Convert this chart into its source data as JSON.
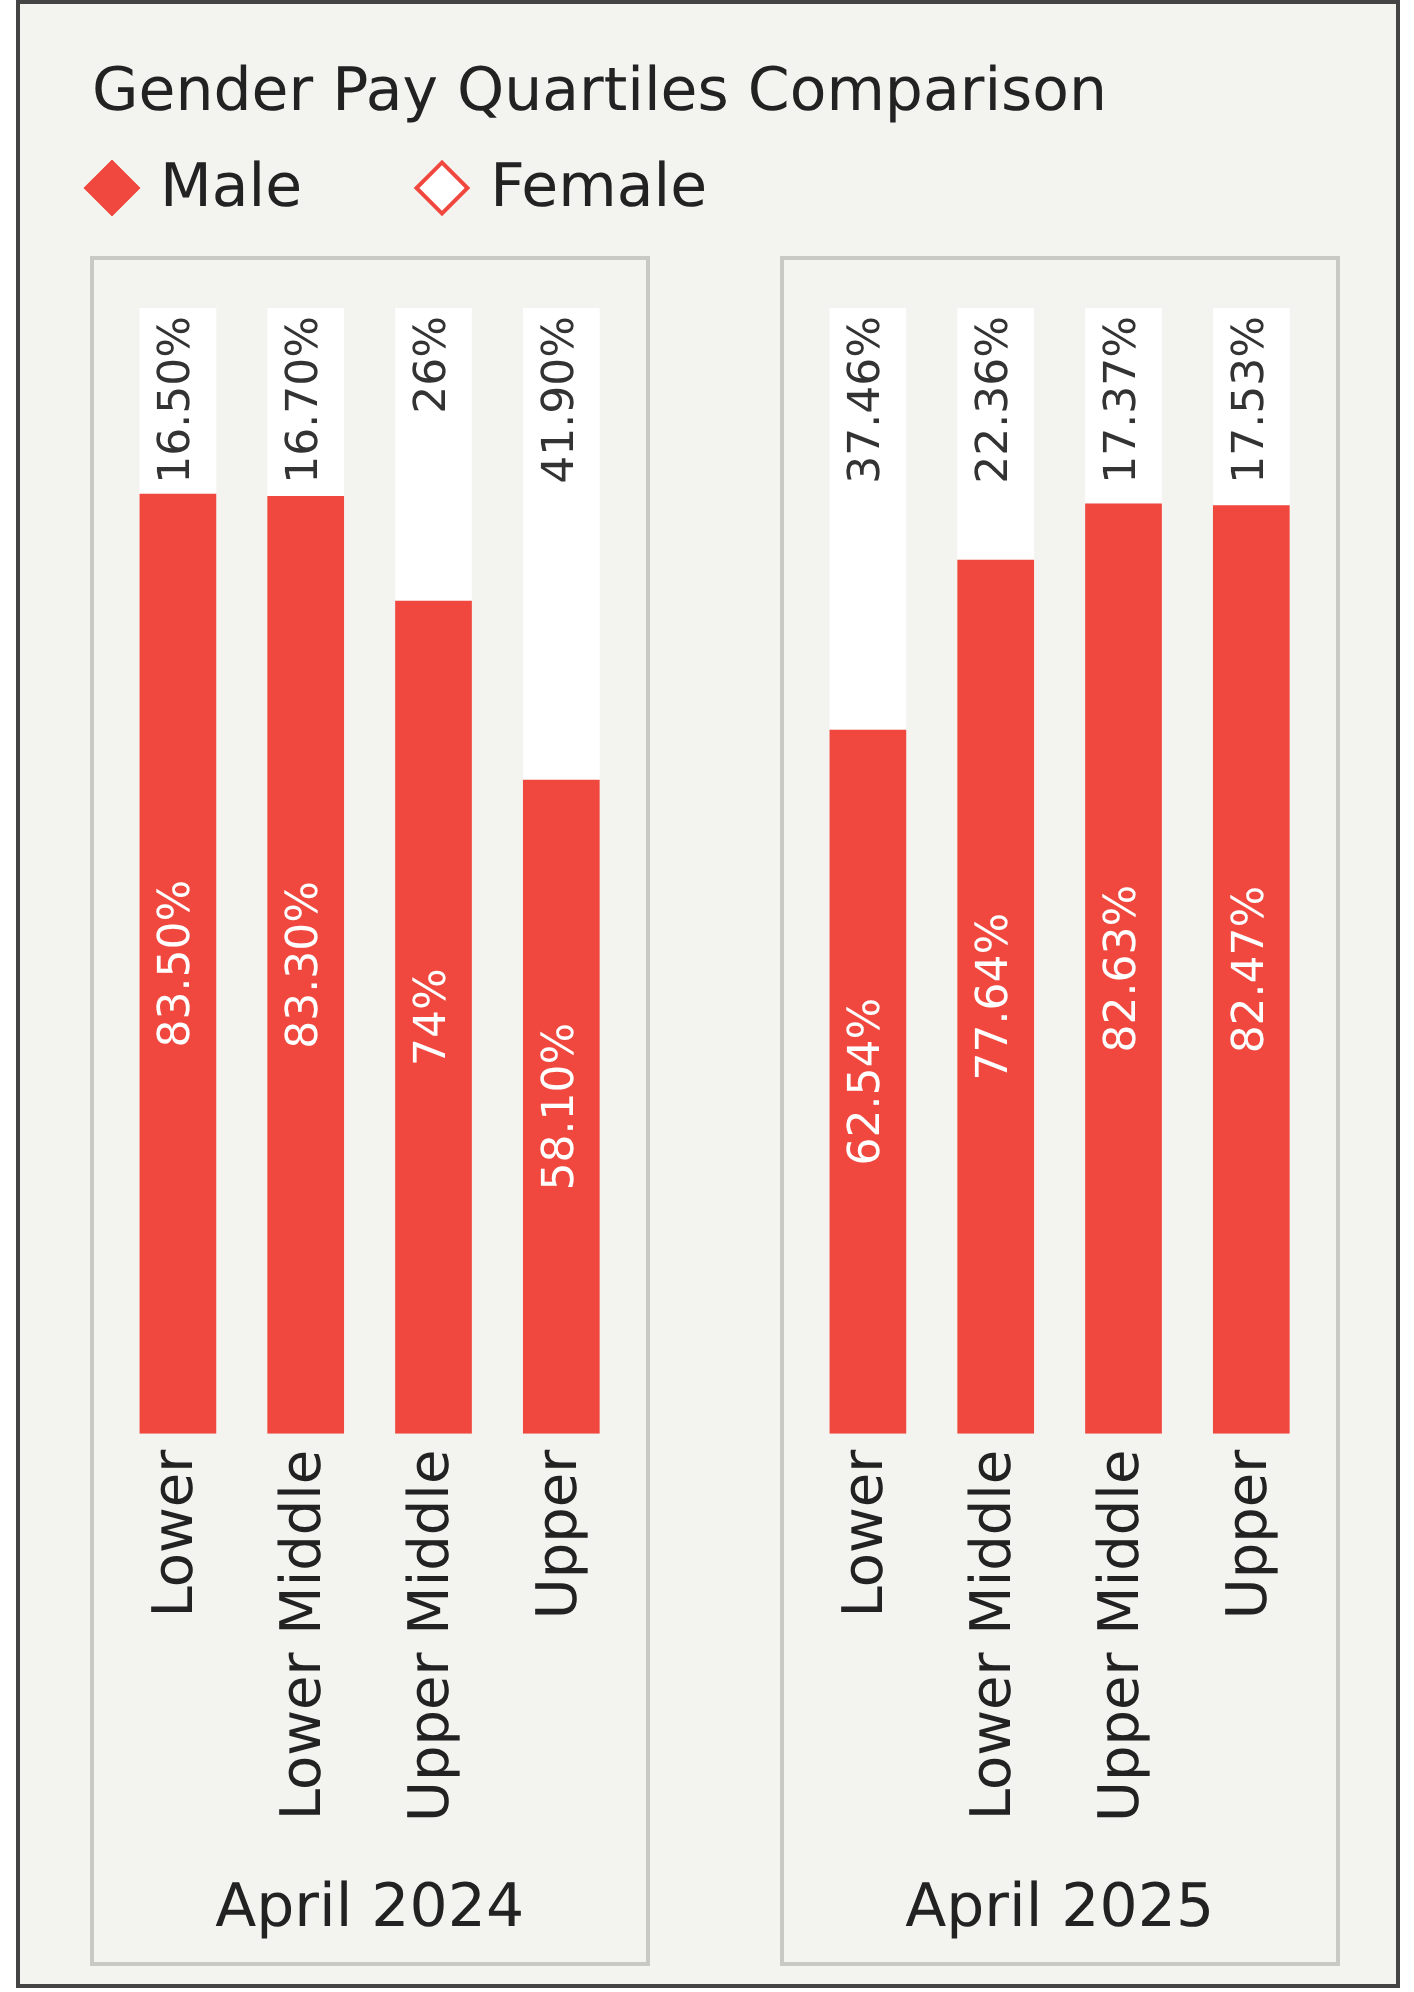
{
  "chart_data": [
    {
      "type": "bar",
      "title": "Gender Pay Quartiles Comparison",
      "xlabel": "April 2024",
      "categories": [
        "Lower",
        "Lower Middle",
        "Upper Middle",
        "Upper"
      ],
      "stacked": true,
      "ylim": [
        0,
        100
      ],
      "tick_labels": "x",
      "grid": false,
      "legend": "top",
      "series": [
        {
          "name": "Male",
          "color": "#f0483e",
          "values": [
            83.5,
            83.3,
            74,
            58.1
          ],
          "value_labels": [
            "83.50%",
            "83.30%",
            "74%",
            "58.10%"
          ]
        },
        {
          "name": "Female",
          "color": "#ffffff",
          "values": [
            16.5,
            16.7,
            26,
            41.9
          ],
          "value_labels": [
            "16.50%",
            "16.70%",
            "26%",
            "41.90%"
          ]
        }
      ]
    },
    {
      "type": "bar",
      "xlabel": "April 2025",
      "categories": [
        "Lower",
        "Lower Middle",
        "Upper Middle",
        "Upper"
      ],
      "stacked": true,
      "ylim": [
        0,
        100
      ],
      "tick_labels": "x",
      "grid": false,
      "series": [
        {
          "color": "#f0483e",
          "values": [
            62.54,
            77.64,
            82.63,
            82.47
          ],
          "value_labels": [
            "62.54%",
            "77.64%",
            "82.63%",
            "82.47%"
          ]
        },
        {
          "color": "#ffffff",
          "values": [
            37.46,
            22.36,
            17.37,
            17.53
          ],
          "value_labels": [
            "37.46%",
            "22.36%",
            "17.37%",
            "17.53%"
          ]
        }
      ]
    }
  ]
}
